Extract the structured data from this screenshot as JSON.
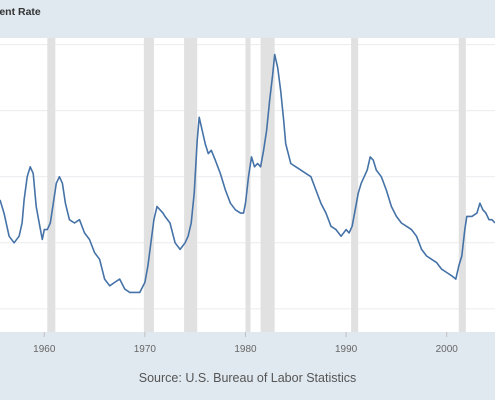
{
  "header": {
    "title": "ment Rate"
  },
  "footer": {
    "source": "Source: U.S. Bureau of Labor Statistics"
  },
  "colors": {
    "line": "#4572a7",
    "recession": "#e1e1e1",
    "grid": "#e9ecef",
    "background": "#e1e9f0",
    "plot_background": "#ffffff"
  },
  "chart_data": {
    "type": "line",
    "title": "ment Rate",
    "xlabel": "",
    "ylabel": "",
    "xlim": [
      1955.6,
      2004.8
    ],
    "ylim": [
      2.3,
      11.2
    ],
    "x_ticks": [
      1960,
      1970,
      1980,
      1990,
      2000
    ],
    "x_tick_labels": [
      "1960",
      "1970",
      "1980",
      "1990",
      "2000"
    ],
    "y_gridlines": [
      3,
      5,
      7,
      9,
      11
    ],
    "grid": true,
    "legend": "none",
    "recessions": [
      [
        1960.3,
        1961.1
      ],
      [
        1969.9,
        1970.9
      ],
      [
        1973.9,
        1975.2
      ],
      [
        1980.0,
        1980.5
      ],
      [
        1981.5,
        1982.9
      ],
      [
        1990.5,
        1991.2
      ],
      [
        2001.2,
        2001.9
      ]
    ],
    "series": [
      {
        "x": [
          1955.6,
          1956.0,
          1956.5,
          1957.0,
          1957.5,
          1957.8,
          1958.0,
          1958.3,
          1958.6,
          1958.9,
          1959.2,
          1959.5,
          1959.8,
          1960.0,
          1960.3,
          1960.6,
          1960.9,
          1961.2,
          1961.5,
          1961.8,
          1962.1,
          1962.5,
          1963.0,
          1963.5,
          1964.0,
          1964.5,
          1965.0,
          1965.5,
          1966.0,
          1966.5,
          1967.0,
          1967.5,
          1968.0,
          1968.5,
          1969.0,
          1969.5,
          1970.0,
          1970.3,
          1970.6,
          1970.9,
          1971.2,
          1971.5,
          1971.8,
          1972.0,
          1972.5,
          1973.0,
          1973.5,
          1974.0,
          1974.3,
          1974.6,
          1974.9,
          1975.2,
          1975.4,
          1975.7,
          1976.0,
          1976.3,
          1976.6,
          1977.0,
          1977.5,
          1978.0,
          1978.5,
          1979.0,
          1979.5,
          1979.8,
          1980.0,
          1980.3,
          1980.6,
          1980.9,
          1981.2,
          1981.5,
          1981.8,
          1982.1,
          1982.4,
          1982.7,
          1982.9,
          1983.2,
          1983.5,
          1983.8,
          1984.0,
          1984.5,
          1985.0,
          1985.5,
          1986.0,
          1986.5,
          1987.0,
          1987.5,
          1988.0,
          1988.5,
          1989.0,
          1989.5,
          1990.0,
          1990.3,
          1990.6,
          1990.9,
          1991.2,
          1991.5,
          1991.8,
          1992.1,
          1992.4,
          1992.7,
          1993.0,
          1993.5,
          1994.0,
          1994.5,
          1995.0,
          1995.5,
          1996.0,
          1996.5,
          1997.0,
          1997.5,
          1998.0,
          1998.5,
          1999.0,
          1999.5,
          2000.0,
          2000.5,
          2000.9,
          2001.2,
          2001.5,
          2001.8,
          2002.0,
          2002.5,
          2003.0,
          2003.3,
          2003.6,
          2003.9,
          2004.2,
          2004.5,
          2004.8
        ],
        "values": [
          6.3,
          5.9,
          5.2,
          5.0,
          5.2,
          5.6,
          6.3,
          7.0,
          7.3,
          7.1,
          6.1,
          5.6,
          5.1,
          5.4,
          5.4,
          5.6,
          6.2,
          6.8,
          7.0,
          6.8,
          6.2,
          5.7,
          5.6,
          5.7,
          5.3,
          5.1,
          4.7,
          4.5,
          3.9,
          3.7,
          3.8,
          3.9,
          3.6,
          3.5,
          3.5,
          3.5,
          3.8,
          4.3,
          5.0,
          5.7,
          6.1,
          6.0,
          5.9,
          5.8,
          5.6,
          5.0,
          4.8,
          5.0,
          5.2,
          5.6,
          6.5,
          8.1,
          8.8,
          8.4,
          8.0,
          7.7,
          7.8,
          7.5,
          7.1,
          6.6,
          6.2,
          6.0,
          5.9,
          5.9,
          6.2,
          7.0,
          7.6,
          7.3,
          7.4,
          7.3,
          7.8,
          8.4,
          9.3,
          10.1,
          10.7,
          10.3,
          9.6,
          8.7,
          8.0,
          7.4,
          7.3,
          7.2,
          7.1,
          7.0,
          6.6,
          6.2,
          5.9,
          5.5,
          5.4,
          5.2,
          5.4,
          5.3,
          5.5,
          6.0,
          6.5,
          6.8,
          7.0,
          7.2,
          7.6,
          7.5,
          7.2,
          7.0,
          6.6,
          6.1,
          5.8,
          5.6,
          5.5,
          5.4,
          5.2,
          4.8,
          4.6,
          4.5,
          4.4,
          4.2,
          4.1,
          4.0,
          3.9,
          4.3,
          4.6,
          5.4,
          5.8,
          5.8,
          5.9,
          6.2,
          6.0,
          5.9,
          5.7,
          5.7,
          5.6
        ]
      }
    ]
  }
}
